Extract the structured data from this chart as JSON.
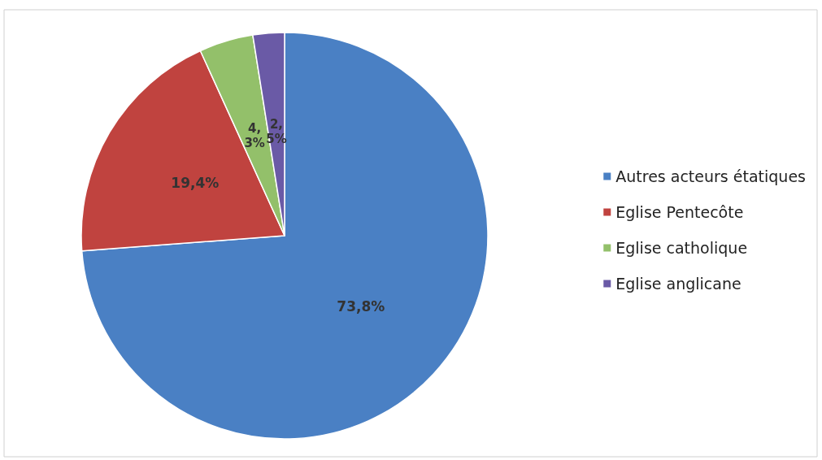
{
  "chart_data": {
    "type": "pie",
    "categories": [
      "Autres acteurs étatiques",
      "Eglise Pentecôte",
      "Eglise catholique",
      "Eglise anglicane"
    ],
    "values": [
      73.8,
      19.4,
      4.3,
      2.5
    ],
    "colors": [
      "#4a80c4",
      "#c0433f",
      "#93c06a",
      "#6a5aa6"
    ],
    "value_labels": [
      "73,8%",
      "19,4%",
      "4,3%",
      "2,5%"
    ],
    "legend": "right"
  }
}
